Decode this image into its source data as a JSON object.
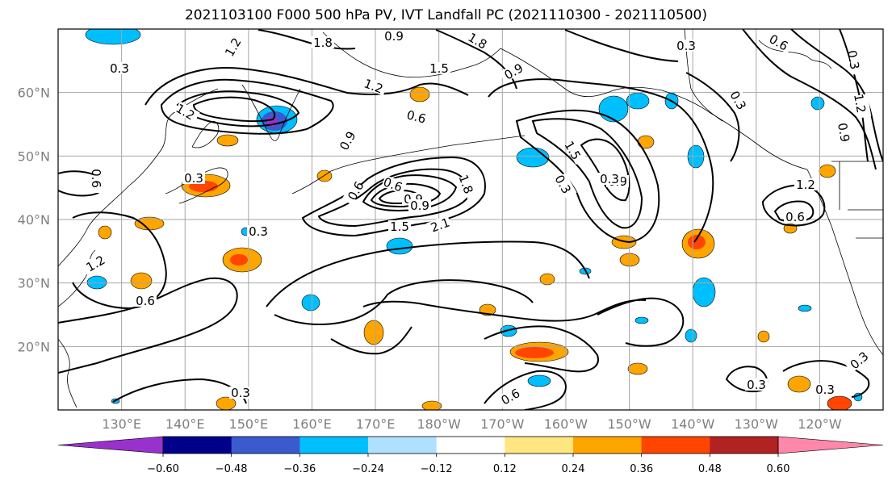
{
  "title": "2021103100 F000 500 hPa PV, IVT Landfall PC (2021110300 - 2021110500)",
  "map": {
    "projection": "PlateCarree",
    "lon_range": [
      120,
      250
    ],
    "lat_range": [
      10,
      70
    ],
    "lat_ticks": [
      "20°N",
      "30°N",
      "40°N",
      "50°N",
      "60°N"
    ],
    "lon_ticks": [
      "130°E",
      "140°E",
      "150°E",
      "160°E",
      "170°E",
      "180°W",
      "170°W",
      "160°W",
      "150°W",
      "140°W",
      "130°W",
      "120°W"
    ],
    "gridlines": true,
    "contour_color": "#000000",
    "contour_labels": [
      "1.2",
      "0.9",
      "1.8",
      "0.3",
      "1.5",
      "1.2",
      "0.3",
      "0.6",
      "1.2",
      "1.5",
      "1.8",
      "0.9",
      "0.6",
      "0.3",
      "1.2",
      "0.9",
      "0.3",
      "0.9",
      "0.3",
      "1.2",
      "0.6",
      "0.6",
      "0.9",
      "0.6",
      "0.9",
      "0.9",
      "1.5",
      "2.1",
      "1.8",
      "0.6",
      "0.3",
      "1.2",
      "0.6",
      "0.3",
      "0.6",
      "0.3",
      "0.3",
      "0.3",
      "0.3",
      "0.3"
    ]
  },
  "colorbar": {
    "colors": [
      "#9932cc",
      "#00008b",
      "#3a5acd",
      "#00bfff",
      "#b0e0ff",
      "#ffffff",
      "#ffe680",
      "#ffa500",
      "#ff4500",
      "#b22222",
      "#ff88aa"
    ],
    "labels": [
      "−0.60",
      "−0.48",
      "−0.36",
      "−0.24",
      "−0.12",
      "0.12",
      "0.24",
      "0.36",
      "0.48",
      "0.60"
    ]
  }
}
